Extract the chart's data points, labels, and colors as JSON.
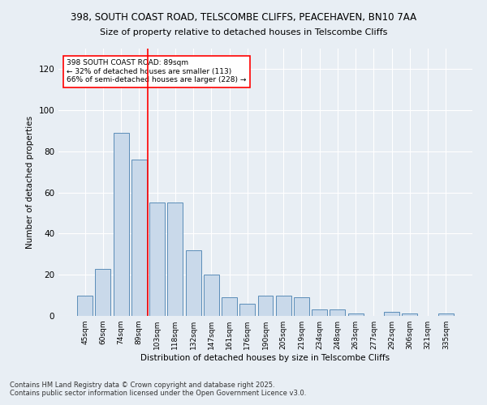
{
  "title": "398, SOUTH COAST ROAD, TELSCOMBE CLIFFS, PEACEHAVEN, BN10 7AA",
  "subtitle": "Size of property relative to detached houses in Telscombe Cliffs",
  "xlabel": "Distribution of detached houses by size in Telscombe Cliffs",
  "ylabel": "Number of detached properties",
  "categories": [
    "45sqm",
    "60sqm",
    "74sqm",
    "89sqm",
    "103sqm",
    "118sqm",
    "132sqm",
    "147sqm",
    "161sqm",
    "176sqm",
    "190sqm",
    "205sqm",
    "219sqm",
    "234sqm",
    "248sqm",
    "263sqm",
    "277sqm",
    "292sqm",
    "306sqm",
    "321sqm",
    "335sqm"
  ],
  "values": [
    10,
    23,
    89,
    76,
    55,
    55,
    32,
    20,
    9,
    6,
    10,
    10,
    9,
    3,
    3,
    1,
    0,
    2,
    1,
    0,
    1
  ],
  "bar_color": "#c9d9ea",
  "bar_edge_color": "#5b8db8",
  "property_bin_index": 3,
  "annotation_line1": "398 SOUTH COAST ROAD: 89sqm",
  "annotation_line2": "← 32% of detached houses are smaller (113)",
  "annotation_line3": "66% of semi-detached houses are larger (228) →",
  "ylim": [
    0,
    130
  ],
  "yticks": [
    0,
    20,
    40,
    60,
    80,
    100,
    120
  ],
  "background_color": "#e8eef4",
  "footer1": "Contains HM Land Registry data © Crown copyright and database right 2025.",
  "footer2": "Contains public sector information licensed under the Open Government Licence v3.0."
}
